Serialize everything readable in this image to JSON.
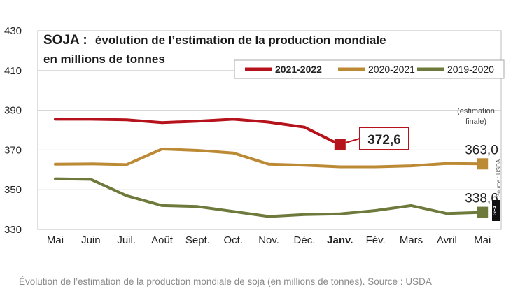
{
  "chart_data": {
    "type": "line",
    "title_bold": "SOJA :",
    "title_line1": "évolution de l’estimation de la production mondiale",
    "title_line2": "en millions de tonnes",
    "categories": [
      "Mai",
      "Juin",
      "Juil.",
      "Août",
      "Sept.",
      "Oct.",
      "Nov.",
      "Déc.",
      "Janv.",
      "Fév.",
      "Mars",
      "Avril",
      "Mai"
    ],
    "highlight_category_index": 8,
    "ylim": [
      330,
      430
    ],
    "yticks": [
      330,
      350,
      370,
      390,
      410,
      430
    ],
    "grid": true,
    "legend_position": "top-right",
    "series": [
      {
        "name": "2021-2022",
        "color": "#b5121b",
        "values": [
          385.5,
          385.5,
          385.2,
          383.8,
          384.5,
          385.5,
          384.0,
          381.5,
          372.6,
          null,
          null,
          null,
          null
        ],
        "end_label": "372,6",
        "end_index": 8
      },
      {
        "name": "2020-2021",
        "color": "#bc8a35",
        "values": [
          362.8,
          363.0,
          362.6,
          370.5,
          369.8,
          368.5,
          362.8,
          362.3,
          361.5,
          361.5,
          362.0,
          363.2,
          363.0
        ],
        "end_label": "363,0",
        "end_index": 12
      },
      {
        "name": "2019-2020",
        "color": "#6e7a3c",
        "values": [
          355.5,
          355.2,
          347.0,
          342.0,
          341.5,
          339.0,
          336.5,
          337.5,
          337.8,
          339.5,
          342.0,
          338.0,
          338.6
        ],
        "end_label": "338,6",
        "end_index": 12
      }
    ],
    "annotation_line1": "(estimation",
    "annotation_line2": "finale)",
    "source": "Source : USDA",
    "logo": "GFA"
  },
  "caption": "Évolution de l’estimation de la production mondiale de soja (en millions de tonnes). Source : USDA"
}
